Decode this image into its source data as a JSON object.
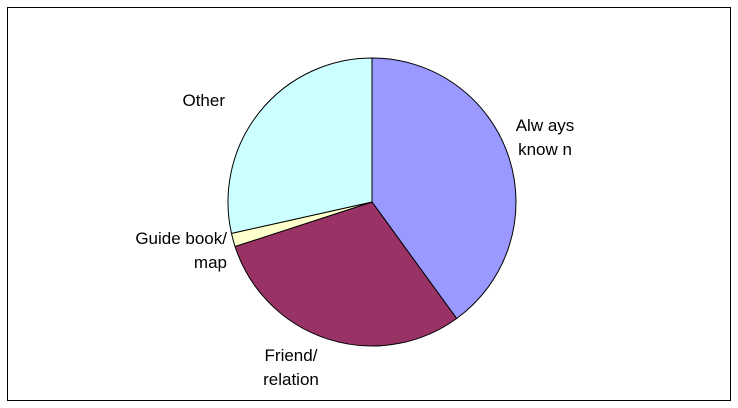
{
  "chart_data": {
    "type": "pie",
    "slices": [
      {
        "label_lines": [
          "Alw ays",
          "know n"
        ],
        "value": 40,
        "color": "#9999ff"
      },
      {
        "label_lines": [
          "Friend/",
          "relation"
        ],
        "value": 30,
        "color": "#993366"
      },
      {
        "label_lines": [
          "Guide book/",
          "map"
        ],
        "value": 1.5,
        "color": "#ffffcc"
      },
      {
        "label_lines": [
          "Other"
        ],
        "value": 28.5,
        "color": "#ccffff"
      }
    ],
    "legend": "none"
  }
}
